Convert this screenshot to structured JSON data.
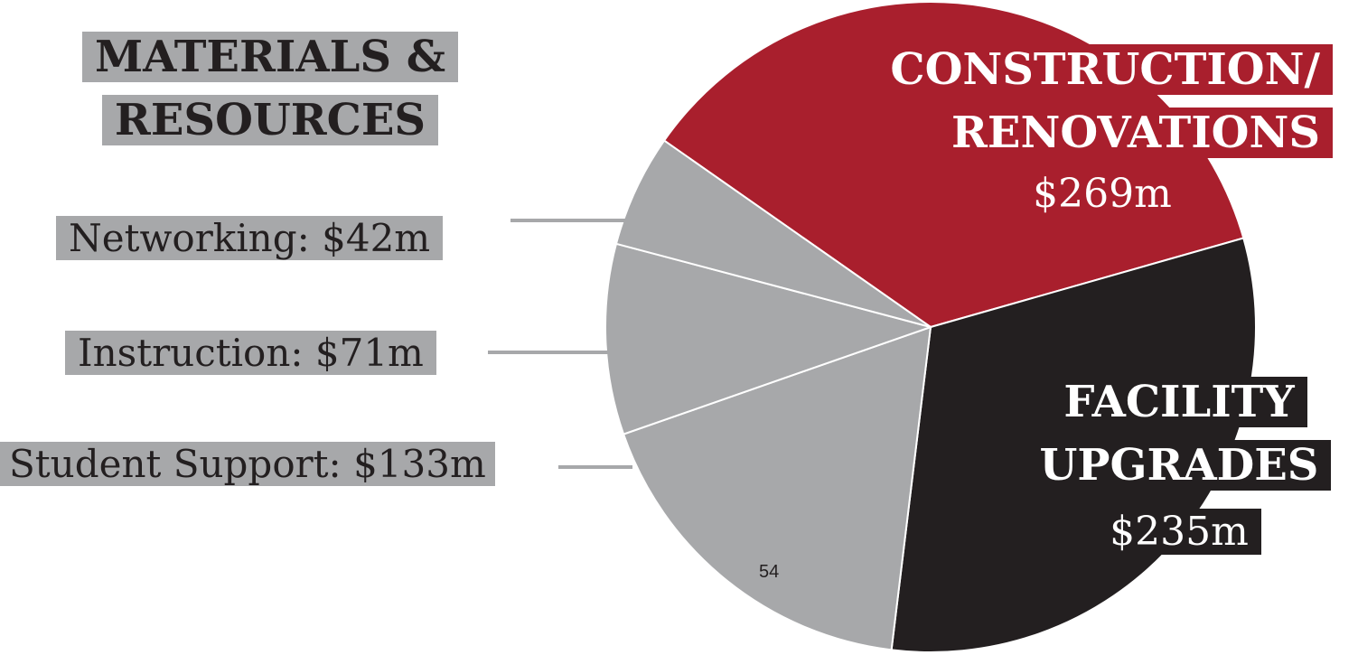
{
  "chart_data": {
    "type": "pie",
    "title": "MATERIALS & RESOURCES",
    "categories": [
      "CONSTRUCTION/ RENOVATIONS",
      "FACILITY UPGRADES",
      "Student Support:",
      "Instruction:",
      "Networking:"
    ],
    "values": [
      269,
      235,
      133,
      71,
      42
    ],
    "value_labels": [
      "$269m",
      "$235m",
      "$133m",
      "$71m",
      "$42m"
    ],
    "colors": [
      "#a91f2d",
      "#231f20",
      "#a7a8aa",
      "#a7a8aa",
      "#a7a8aa"
    ],
    "page_number": "54"
  }
}
